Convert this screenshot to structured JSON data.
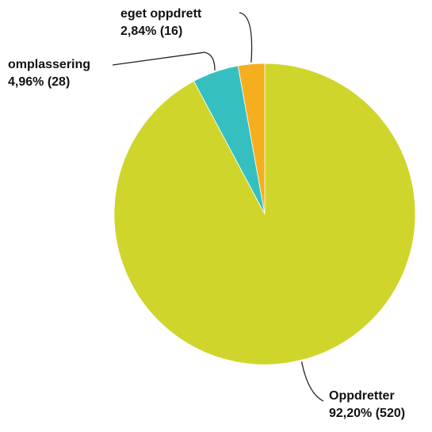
{
  "chart_data": {
    "type": "pie",
    "categories": [
      "Oppdretter",
      "omplassering",
      "eget oppdrett"
    ],
    "values": [
      92.2,
      4.96,
      2.84
    ],
    "value_labels": [
      "92,20% (520)",
      "4,96% (28)",
      "2,84% (16)"
    ],
    "colors": [
      "#cfd52a",
      "#35bfc1",
      "#f5ae1e"
    ]
  }
}
